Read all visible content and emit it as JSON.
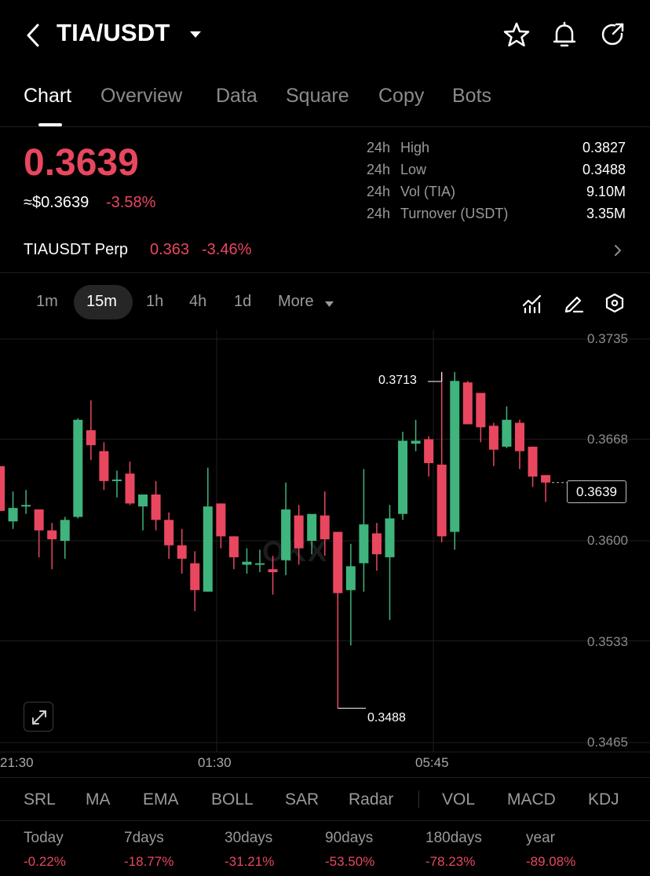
{
  "header": {
    "pair": "TIA/USDT",
    "icons": [
      "back-chevron-icon",
      "caret-down-icon",
      "star-icon",
      "bell-icon",
      "share-icon"
    ]
  },
  "tabs": [
    {
      "label": "Chart",
      "active": true
    },
    {
      "label": "Overview",
      "active": false
    },
    {
      "label": "Data",
      "active": false
    },
    {
      "label": "Square",
      "active": false
    },
    {
      "label": "Copy",
      "active": false
    },
    {
      "label": "Bots",
      "active": false
    }
  ],
  "ticker": {
    "price": "0.3639",
    "usd_price": "≈$0.3639",
    "change": "-3.58%"
  },
  "stats": [
    {
      "period": "24h",
      "label": "High",
      "value": "0.3827"
    },
    {
      "period": "24h",
      "label": "Low",
      "value": "0.3488"
    },
    {
      "period": "24h",
      "label": "Vol (TIA)",
      "value": "9.10M"
    },
    {
      "period": "24h",
      "label": "Turnover (USDT)",
      "value": "3.35M"
    }
  ],
  "perp": {
    "name": "TIAUSDT Perp",
    "price": "0.363",
    "change": "-3.46%"
  },
  "intervals": {
    "items": [
      "1m",
      "15m",
      "1h",
      "4h",
      "1d",
      "More"
    ],
    "selected": "15m",
    "tools": [
      "indicator-chart-icon",
      "draw-pen-icon",
      "settings-hexagon-icon"
    ]
  },
  "chart": {
    "y_labels": [
      "0.3735",
      "0.3668",
      "0.3600",
      "0.3533",
      "0.3465"
    ],
    "x_labels": [
      "21:30",
      "01:30",
      "05:45"
    ],
    "last_price": "0.3639",
    "high_marker": "0.3713",
    "low_marker": "0.3488",
    "watermark": "OKX"
  },
  "colors": {
    "up": "#3fb47c",
    "down": "#e8475f",
    "background": "#000000"
  },
  "chart_data": {
    "type": "candlestick",
    "interval": "15m",
    "ylim": [
      0.3465,
      0.3735
    ],
    "candles": [
      {
        "o": 0.365,
        "h": 0.365,
        "l": 0.362,
        "c": 0.362
      },
      {
        "o": 0.3613,
        "h": 0.3633,
        "l": 0.3608,
        "c": 0.3622
      },
      {
        "o": 0.3623,
        "h": 0.3634,
        "l": 0.3618,
        "c": 0.3624
      },
      {
        "o": 0.3621,
        "h": 0.3621,
        "l": 0.3589,
        "c": 0.3607
      },
      {
        "o": 0.3607,
        "h": 0.3612,
        "l": 0.3581,
        "c": 0.3601
      },
      {
        "o": 0.36,
        "h": 0.3616,
        "l": 0.3588,
        "c": 0.3614
      },
      {
        "o": 0.3616,
        "h": 0.3682,
        "l": 0.3615,
        "c": 0.3681
      },
      {
        "o": 0.3674,
        "h": 0.3694,
        "l": 0.3654,
        "c": 0.3664
      },
      {
        "o": 0.366,
        "h": 0.3666,
        "l": 0.3634,
        "c": 0.364
      },
      {
        "o": 0.3641,
        "h": 0.3647,
        "l": 0.3629,
        "c": 0.3641
      },
      {
        "o": 0.3645,
        "h": 0.3653,
        "l": 0.3624,
        "c": 0.3625
      },
      {
        "o": 0.3623,
        "h": 0.3631,
        "l": 0.3607,
        "c": 0.3631
      },
      {
        "o": 0.3631,
        "h": 0.364,
        "l": 0.3607,
        "c": 0.3614
      },
      {
        "o": 0.3614,
        "h": 0.3619,
        "l": 0.3588,
        "c": 0.3597
      },
      {
        "o": 0.3597,
        "h": 0.3608,
        "l": 0.3578,
        "c": 0.3588
      },
      {
        "o": 0.3585,
        "h": 0.3593,
        "l": 0.3553,
        "c": 0.3567
      },
      {
        "o": 0.3566,
        "h": 0.3649,
        "l": 0.3566,
        "c": 0.3623
      },
      {
        "o": 0.3625,
        "h": 0.3625,
        "l": 0.3595,
        "c": 0.3603
      },
      {
        "o": 0.3603,
        "h": 0.3603,
        "l": 0.3581,
        "c": 0.3589
      },
      {
        "o": 0.3584,
        "h": 0.3595,
        "l": 0.3578,
        "c": 0.3586
      },
      {
        "o": 0.3585,
        "h": 0.3594,
        "l": 0.3579,
        "c": 0.3585
      },
      {
        "o": 0.3581,
        "h": 0.359,
        "l": 0.3564,
        "c": 0.3579
      },
      {
        "o": 0.3587,
        "h": 0.3639,
        "l": 0.3577,
        "c": 0.3621
      },
      {
        "o": 0.3617,
        "h": 0.3624,
        "l": 0.3584,
        "c": 0.3595
      },
      {
        "o": 0.36,
        "h": 0.3617,
        "l": 0.3591,
        "c": 0.3618
      },
      {
        "o": 0.3617,
        "h": 0.3633,
        "l": 0.359,
        "c": 0.3601
      },
      {
        "o": 0.3606,
        "h": 0.3606,
        "l": 0.3488,
        "c": 0.3565
      },
      {
        "o": 0.3567,
        "h": 0.3598,
        "l": 0.353,
        "c": 0.3583
      },
      {
        "o": 0.3585,
        "h": 0.3648,
        "l": 0.3566,
        "c": 0.3611
      },
      {
        "o": 0.3605,
        "h": 0.3612,
        "l": 0.358,
        "c": 0.3591
      },
      {
        "o": 0.3589,
        "h": 0.3624,
        "l": 0.3547,
        "c": 0.3615
      },
      {
        "o": 0.3618,
        "h": 0.3673,
        "l": 0.3614,
        "c": 0.3667
      },
      {
        "o": 0.3665,
        "h": 0.3681,
        "l": 0.366,
        "c": 0.3667
      },
      {
        "o": 0.3668,
        "h": 0.367,
        "l": 0.3643,
        "c": 0.3652
      },
      {
        "o": 0.3651,
        "h": 0.3713,
        "l": 0.3599,
        "c": 0.3603
      },
      {
        "o": 0.3606,
        "h": 0.3713,
        "l": 0.3594,
        "c": 0.3707
      },
      {
        "o": 0.3706,
        "h": 0.3707,
        "l": 0.3678,
        "c": 0.3678
      },
      {
        "o": 0.3699,
        "h": 0.3699,
        "l": 0.3666,
        "c": 0.3676
      },
      {
        "o": 0.3677,
        "h": 0.3679,
        "l": 0.365,
        "c": 0.3661
      },
      {
        "o": 0.3663,
        "h": 0.369,
        "l": 0.3662,
        "c": 0.3681
      },
      {
        "o": 0.3679,
        "h": 0.3681,
        "l": 0.3648,
        "c": 0.366
      },
      {
        "o": 0.3663,
        "h": 0.3663,
        "l": 0.3636,
        "c": 0.3643
      },
      {
        "o": 0.3644,
        "h": 0.3644,
        "l": 0.3626,
        "c": 0.3639
      }
    ]
  },
  "indicators": {
    "main": [
      "SRL",
      "MA",
      "EMA",
      "BOLL",
      "SAR",
      "Radar"
    ],
    "sub": [
      "VOL",
      "MACD",
      "KDJ"
    ]
  },
  "performance": [
    {
      "label": "Today",
      "value": "-0.22%"
    },
    {
      "label": "7days",
      "value": "-18.77%"
    },
    {
      "label": "30days",
      "value": "-31.21%"
    },
    {
      "label": "90days",
      "value": "-53.50%"
    },
    {
      "label": "180days",
      "value": "-78.23%"
    },
    {
      "label": "year",
      "value": "-89.08%"
    }
  ]
}
